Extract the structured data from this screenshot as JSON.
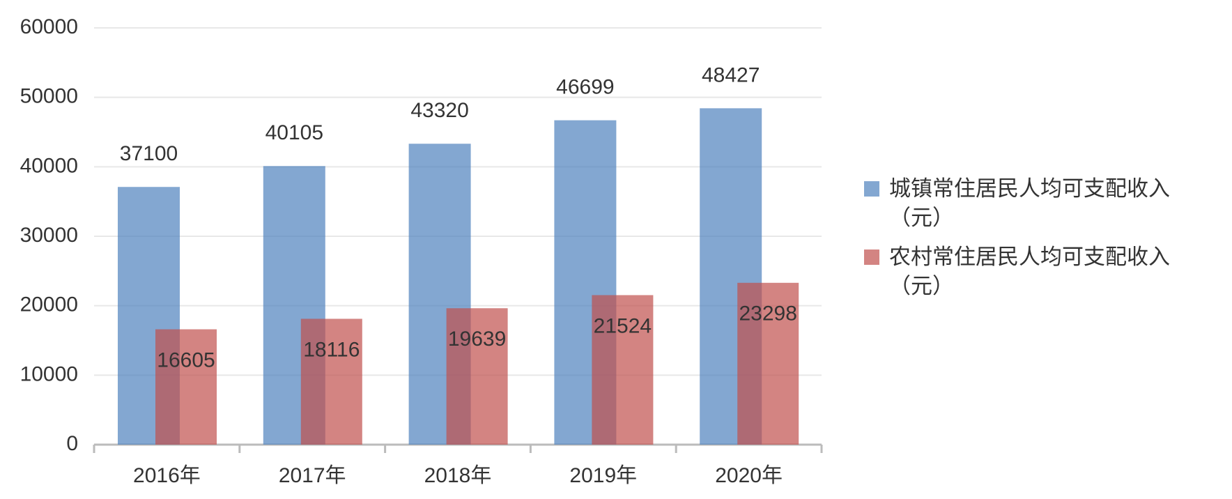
{
  "chart_data": {
    "type": "bar",
    "categories": [
      "2016年",
      "2017年",
      "2018年",
      "2019年",
      "2020年"
    ],
    "series": [
      {
        "name": "城镇常住居民人均可支配收入（元）",
        "color": "#4f81bd",
        "values": [
          37100,
          40105,
          43320,
          46699,
          48427
        ]
      },
      {
        "name": "农村常住居民人均可支配收入（元）",
        "color": "#c0504d",
        "values": [
          16605,
          18116,
          19639,
          21524,
          23298
        ]
      }
    ],
    "ylim": [
      0,
      60000
    ],
    "yticks": [
      0,
      10000,
      20000,
      30000,
      40000,
      50000,
      60000
    ],
    "grid": true,
    "legend": "right"
  }
}
